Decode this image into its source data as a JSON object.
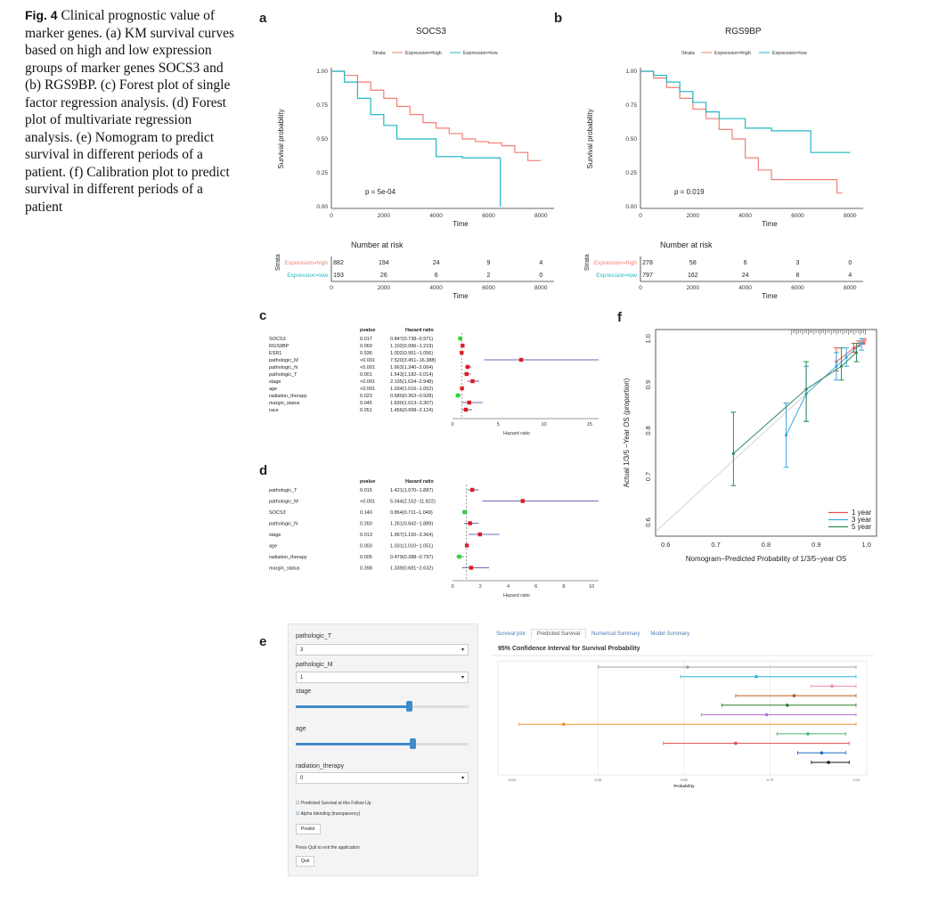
{
  "caption": {
    "fig": "Fig. 4",
    "text": "Clinical prognostic value of marker genes. (a) KM survival curves based on high and low expression groups of marker genes SOCS3 and (b) RGS9BP. (c) Forest plot of single factor regression analysis. (d) Forest plot of multivariate regression analysis. (e) Nomogram to predict survival in different periods of a patient. (f) Calibration plot to predict survival in different periods of a patient"
  },
  "panel_labels": {
    "a": "a",
    "b": "b",
    "c": "c",
    "d": "d",
    "e": "e",
    "f": "f"
  },
  "colors": {
    "high": "#f07f74",
    "low": "#1fb8c3",
    "forest_point": "#e01a1a",
    "forest_ci": "#3a3aa0",
    "forest_low": "#27d827"
  },
  "km_common": {
    "strata_label": "Strata",
    "high_label": "Expression=high",
    "low_label": "Expression=low",
    "ylabel": "Survival probability",
    "xlabel": "Time",
    "risk_title": "Number at risk",
    "yticks": [
      "0.00",
      "0.25",
      "0.50",
      "0.75",
      "1.00"
    ],
    "xticks": [
      "0",
      "2000",
      "4000",
      "6000",
      "8000"
    ]
  },
  "km_a": {
    "title": "SOCS3",
    "pvalue": "p = 5e-04",
    "risk_high": [
      "882",
      "194",
      "24",
      "9",
      "4"
    ],
    "risk_low": [
      "193",
      "26",
      "6",
      "2",
      "0"
    ]
  },
  "km_b": {
    "title": "RGS9BP",
    "pvalue": "p = 0.019",
    "risk_high": [
      "278",
      "58",
      "6",
      "3",
      "0"
    ],
    "risk_low": [
      "797",
      "162",
      "24",
      "8",
      "4"
    ]
  },
  "forest_c": {
    "head_p": "pvalue",
    "head_hr": "Hazard ratio",
    "xlabel": "Hazard ratio",
    "xticks": [
      "0",
      "5",
      "10",
      "15"
    ],
    "rows": [
      {
        "name": "SOCS3",
        "p": "0.017",
        "hr": "0.847(0.738−0.971)"
      },
      {
        "name": "RGS9BP",
        "p": "0.060",
        "hr": "1.102(0.996−1.219)"
      },
      {
        "name": "ESR1",
        "p": "0.936",
        "hr": "1.002(0.951−1.056)"
      },
      {
        "name": "pathologic_M",
        "p": "<0.001",
        "hr": "7.520(3.451−16.388)"
      },
      {
        "name": "pathologic_N",
        "p": "<0.001",
        "hr": "1.663(1.340−2.064)"
      },
      {
        "name": "pathologic_T",
        "p": "0.001",
        "hr": "1.543(1.182−2.014)"
      },
      {
        "name": "stage",
        "p": "<0.001",
        "hr": "2.195(1.634−2.948)"
      },
      {
        "name": "age",
        "p": "<0.001",
        "hr": "1.034(1.016−1.052)"
      },
      {
        "name": "radiation_therapy",
        "p": "0.023",
        "hr": "0.580(0.363−0.928)"
      },
      {
        "name": "margin_status",
        "p": "0.045",
        "hr": "1.830(1.013−3.307)"
      },
      {
        "name": "race",
        "p": "0.051",
        "hr": "1.456(0.998−2.124)"
      }
    ]
  },
  "forest_d": {
    "head_p": "pvalue",
    "head_hr": "Hazard ratio",
    "xlabel": "Hazard ratio",
    "xticks": [
      "0",
      "2",
      "4",
      "6",
      "8",
      "10"
    ],
    "rows": [
      {
        "name": "pathologic_T",
        "p": "0.015",
        "hr": "1.421(1.070−1.887)"
      },
      {
        "name": "pathologic_M",
        "p": "<0.001",
        "hr": "5.044(2.152−11.822)"
      },
      {
        "name": "SOCS3",
        "p": "0.140",
        "hr": "0.864(0.711−1.049)"
      },
      {
        "name": "pathologic_N",
        "p": "0.260",
        "hr": "1.261(0.842−1.889)"
      },
      {
        "name": "stage",
        "p": "0.013",
        "hr": "1.967(1.150−3.364)"
      },
      {
        "name": "age",
        "p": "0.003",
        "hr": "1.031(1.010−1.051)"
      },
      {
        "name": "radiation_therapy",
        "p": "0.005",
        "hr": "0.479(0.288−0.797)"
      },
      {
        "name": "margin_status",
        "p": "0.398",
        "hr": "1.339(0.681−2.632)"
      }
    ]
  },
  "calib_f": {
    "xlabel": "Nomogram−Predicted Probability of 1/3/5−year OS",
    "ylabel": "Actual 1/3/5 −Year OS (proportion)",
    "xticks": [
      "0.6",
      "0.7",
      "0.8",
      "0.9",
      "1.0"
    ],
    "yticks": [
      "0.6",
      "0.7",
      "0.8",
      "0.9",
      "1.0"
    ],
    "legend": [
      "1 year",
      "3 year",
      "5 year"
    ],
    "colors": [
      "#e8524a",
      "#3ea7e0",
      "#2e8b57"
    ]
  },
  "nomogram_e": {
    "f1": "pathologic_T",
    "v1": "3",
    "f2": "pathologic_M",
    "v2": "1",
    "f3": "stage",
    "f4": "age",
    "f5": "radiation_therapy",
    "v5": "0",
    "cb1": "Predicted Survival at this Follow Up",
    "cb2": "Alpha blending (transparency)",
    "predict": "Predict",
    "quit_hint": "Press Quit to exit the application",
    "quit": "Quit",
    "tabs": [
      "Survival plot",
      "Predicted Survival",
      "Numerical Summary",
      "Model Summary"
    ],
    "plot_title": "95% Confidence Interval for Survival Probability",
    "xlabel": "Probability",
    "xticks": [
      "0.00",
      "0.25",
      "0.50",
      "0.75",
      "1.00"
    ]
  },
  "chart_data": [
    {
      "type": "line",
      "title": "SOCS3",
      "xlabel": "Time",
      "ylabel": "Survival probability",
      "xlim": [
        0,
        8500
      ],
      "ylim": [
        0,
        1
      ],
      "series": [
        {
          "name": "Expression=high",
          "x": [
            0,
            500,
            1000,
            1500,
            2000,
            2500,
            3000,
            3500,
            4000,
            4500,
            5000,
            5500,
            6000,
            6500,
            7000,
            7500,
            8000
          ],
          "y": [
            1.0,
            0.97,
            0.92,
            0.86,
            0.8,
            0.74,
            0.68,
            0.62,
            0.58,
            0.54,
            0.5,
            0.48,
            0.47,
            0.45,
            0.4,
            0.34,
            0.34
          ]
        },
        {
          "name": "Expression=low",
          "x": [
            0,
            500,
            1000,
            1500,
            2000,
            2500,
            3000,
            4000,
            5000,
            6000,
            6400,
            6450
          ],
          "y": [
            1.0,
            0.92,
            0.8,
            0.68,
            0.6,
            0.5,
            0.5,
            0.37,
            0.36,
            0.36,
            0.36,
            0.0
          ]
        }
      ],
      "annotation": "p = 5e-04"
    },
    {
      "type": "line",
      "title": "RGS9BP",
      "xlabel": "Time",
      "ylabel": "Survival probability",
      "xlim": [
        0,
        8500
      ],
      "ylim": [
        0,
        1
      ],
      "series": [
        {
          "name": "Expression=high",
          "x": [
            0,
            500,
            1000,
            1500,
            2000,
            2500,
            3000,
            3500,
            4000,
            4500,
            5000,
            6000,
            7000,
            7500,
            7700
          ],
          "y": [
            1.0,
            0.95,
            0.88,
            0.8,
            0.72,
            0.65,
            0.57,
            0.5,
            0.36,
            0.27,
            0.2,
            0.2,
            0.2,
            0.1,
            0.1
          ]
        },
        {
          "name": "Expression=low",
          "x": [
            0,
            500,
            1000,
            1500,
            2000,
            2500,
            3000,
            4000,
            5000,
            6000,
            6500,
            7000,
            8000
          ],
          "y": [
            1.0,
            0.97,
            0.92,
            0.85,
            0.77,
            0.7,
            0.65,
            0.58,
            0.56,
            0.56,
            0.4,
            0.4,
            0.4
          ]
        }
      ],
      "annotation": "p = 0.019"
    },
    {
      "type": "scatter",
      "title": "",
      "xlabel": "Hazard ratio",
      "estimates": [
        0.847,
        1.102,
        1.002,
        7.52,
        1.663,
        1.543,
        2.195,
        1.034,
        0.58,
        1.83,
        1.456
      ],
      "lower": [
        0.738,
        0.996,
        0.951,
        3.451,
        1.34,
        1.182,
        1.634,
        1.016,
        0.363,
        1.013,
        0.998
      ],
      "upper": [
        0.971,
        1.219,
        1.056,
        16.388,
        2.064,
        2.014,
        2.948,
        1.052,
        0.928,
        3.307,
        2.124
      ],
      "xlim": [
        0,
        16
      ]
    },
    {
      "type": "scatter",
      "title": "",
      "xlabel": "Hazard ratio",
      "estimates": [
        1.421,
        5.044,
        0.864,
        1.261,
        1.967,
        1.031,
        0.479,
        1.339
      ],
      "lower": [
        1.07,
        2.152,
        0.711,
        0.842,
        1.15,
        1.01,
        0.288,
        0.681
      ],
      "upper": [
        1.887,
        11.822,
        1.049,
        1.889,
        3.364,
        1.051,
        0.797,
        2.632
      ],
      "xlim": [
        0,
        10.5
      ]
    },
    {
      "type": "line",
      "title": "",
      "xlabel": "Nomogram−Predicted Probability of 1/3/5−year OS",
      "ylabel": "Actual 1/3/5 −Year OS (proportion)",
      "xlim": [
        0.58,
        1.02
      ],
      "ylim": [
        0.57,
        1.02
      ],
      "series": [
        {
          "name": "1 year",
          "x": [
            0.94,
            0.975,
            0.985,
            0.995
          ],
          "y": [
            0.95,
            0.98,
            0.985,
            0.99
          ]
        },
        {
          "name": "3 year",
          "x": [
            0.84,
            0.88,
            0.94,
            0.96,
            0.99
          ],
          "y": [
            0.79,
            0.88,
            0.94,
            0.96,
            0.99
          ]
        },
        {
          "name": "5 year",
          "x": [
            0.735,
            0.88,
            0.95,
            0.98
          ],
          "y": [
            0.75,
            0.89,
            0.94,
            0.97
          ]
        }
      ]
    },
    {
      "type": "scatter",
      "title": "95% Confidence Interval for Survival Probability",
      "xlabel": "Probability",
      "xlim": [
        0,
        1
      ],
      "points": [
        {
          "est": 0.51,
          "lo": 0.25,
          "hi": 1.0,
          "color": "#a0a0a0"
        },
        {
          "est": 0.71,
          "lo": 0.49,
          "hi": 1.0,
          "color": "#29b5e0"
        },
        {
          "est": 0.93,
          "lo": 0.87,
          "hi": 1.0,
          "color": "#e98ab8"
        },
        {
          "est": 0.82,
          "lo": 0.65,
          "hi": 1.0,
          "color": "#b85a17"
        },
        {
          "est": 0.8,
          "lo": 0.61,
          "hi": 1.0,
          "color": "#2d7a2d"
        },
        {
          "est": 0.74,
          "lo": 0.55,
          "hi": 1.0,
          "color": "#b46fd8"
        },
        {
          "est": 0.15,
          "lo": 0.02,
          "hi": 1.0,
          "color": "#f0902a"
        },
        {
          "est": 0.86,
          "lo": 0.77,
          "hi": 0.97,
          "color": "#46b56a"
        },
        {
          "est": 0.65,
          "lo": 0.44,
          "hi": 0.98,
          "color": "#e04a4a"
        },
        {
          "est": 0.9,
          "lo": 0.83,
          "hi": 0.97,
          "color": "#1f6bc1"
        },
        {
          "est": 0.92,
          "lo": 0.87,
          "hi": 0.98,
          "color": "#111111"
        }
      ]
    }
  ]
}
